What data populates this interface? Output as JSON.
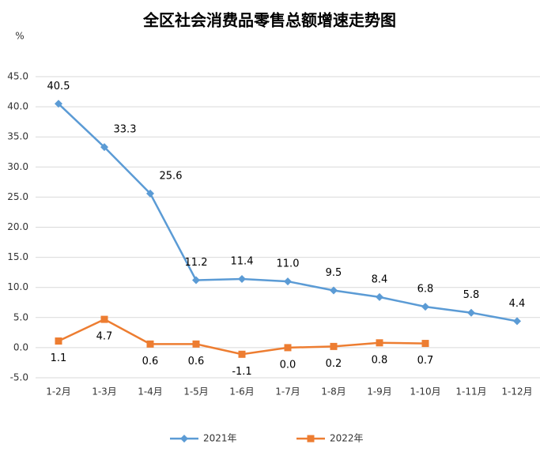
{
  "chart_data": {
    "type": "line",
    "title": "全区社会消费品零售总额增速走势图",
    "y_unit": "%",
    "categories": [
      "1-2月",
      "1-3月",
      "1-4月",
      "1-5月",
      "1-6月",
      "1-7月",
      "1-8月",
      "1-9月",
      "1-10月",
      "1-11月",
      "1-12月"
    ],
    "series": [
      {
        "name": "2021年",
        "color": "#5b9bd5",
        "marker": "diamond",
        "values": [
          40.5,
          33.3,
          25.6,
          11.2,
          11.4,
          11.0,
          9.5,
          8.4,
          6.8,
          5.8,
          4.4
        ],
        "value_labels": [
          "40.5",
          "33.3",
          "25.6",
          "11.2",
          "11.4",
          "11.0",
          "9.5",
          "8.4",
          "6.8",
          "5.8",
          "4.4"
        ]
      },
      {
        "name": "2022年",
        "color": "#ed7d31",
        "marker": "square",
        "values": [
          1.1,
          4.7,
          0.6,
          0.6,
          -1.1,
          0.0,
          0.2,
          0.8,
          0.7,
          null,
          null
        ],
        "value_labels": [
          "1.1",
          "4.7",
          "0.6",
          "0.6",
          "-1.1",
          "0.0",
          "0.2",
          "0.8",
          "0.7",
          null,
          null
        ]
      }
    ],
    "ylim": [
      -5,
      45
    ],
    "yticks": [
      {
        "value": -5,
        "label": "-5.0"
      },
      {
        "value": 0,
        "label": "0.0"
      },
      {
        "value": 5,
        "label": "5.0"
      },
      {
        "value": 10,
        "label": "10.0"
      },
      {
        "value": 15,
        "label": "15.0"
      },
      {
        "value": 20,
        "label": "20.0"
      },
      {
        "value": 25,
        "label": "25.0"
      },
      {
        "value": 30,
        "label": "30.0"
      },
      {
        "value": 35,
        "label": "35.0"
      },
      {
        "value": 40,
        "label": "40.0"
      },
      {
        "value": 45,
        "label": "45.0"
      }
    ],
    "grid": true,
    "legend": "bottom"
  }
}
